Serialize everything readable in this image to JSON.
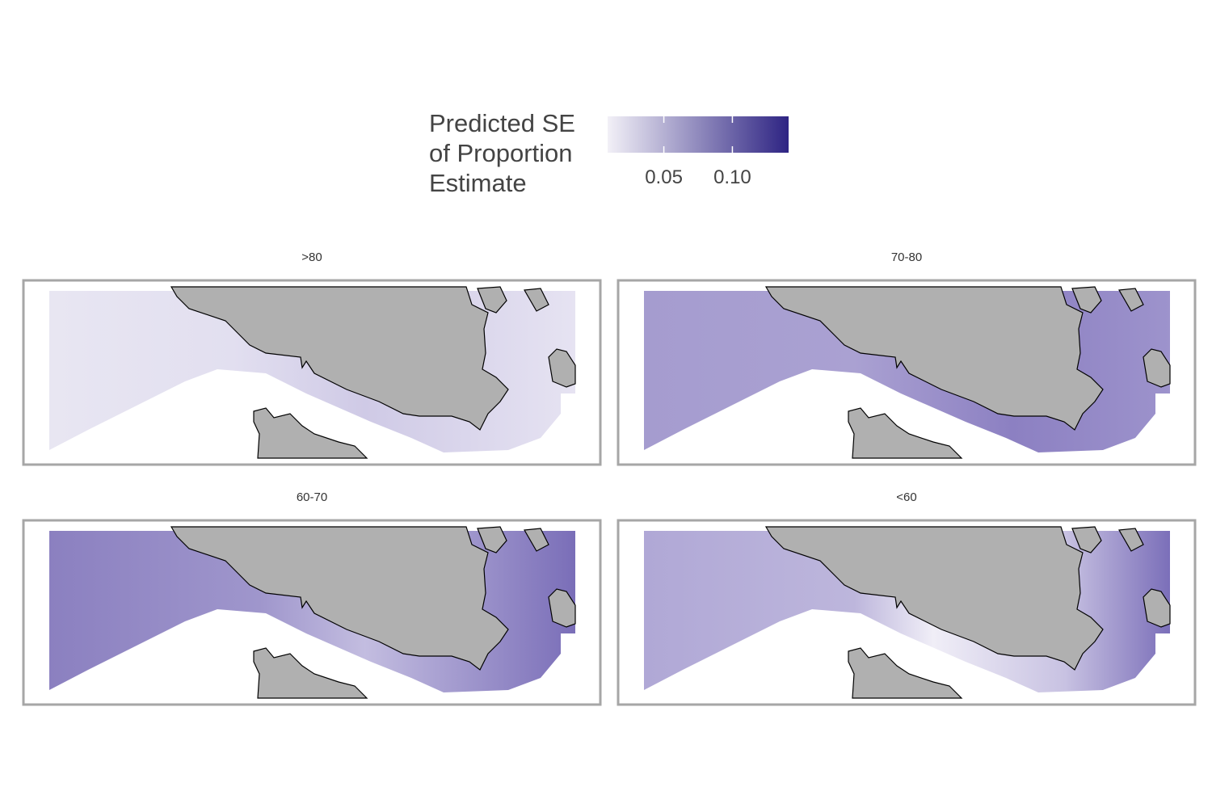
{
  "legend": {
    "title": [
      "Predicted SE",
      "of Proportion",
      "Estimate"
    ],
    "range": [
      0.009,
      0.141
    ],
    "ticks": [
      0.05,
      {
        "value": 0.1,
        "label": "0.10"
      }
    ],
    "colors": [
      "#f2f0f7",
      "#2e2483"
    ]
  },
  "panels": [
    {
      "label": ">80"
    },
    {
      "label": "70-80"
    },
    {
      "label": "60-70"
    },
    {
      "label": "<60"
    }
  ]
}
